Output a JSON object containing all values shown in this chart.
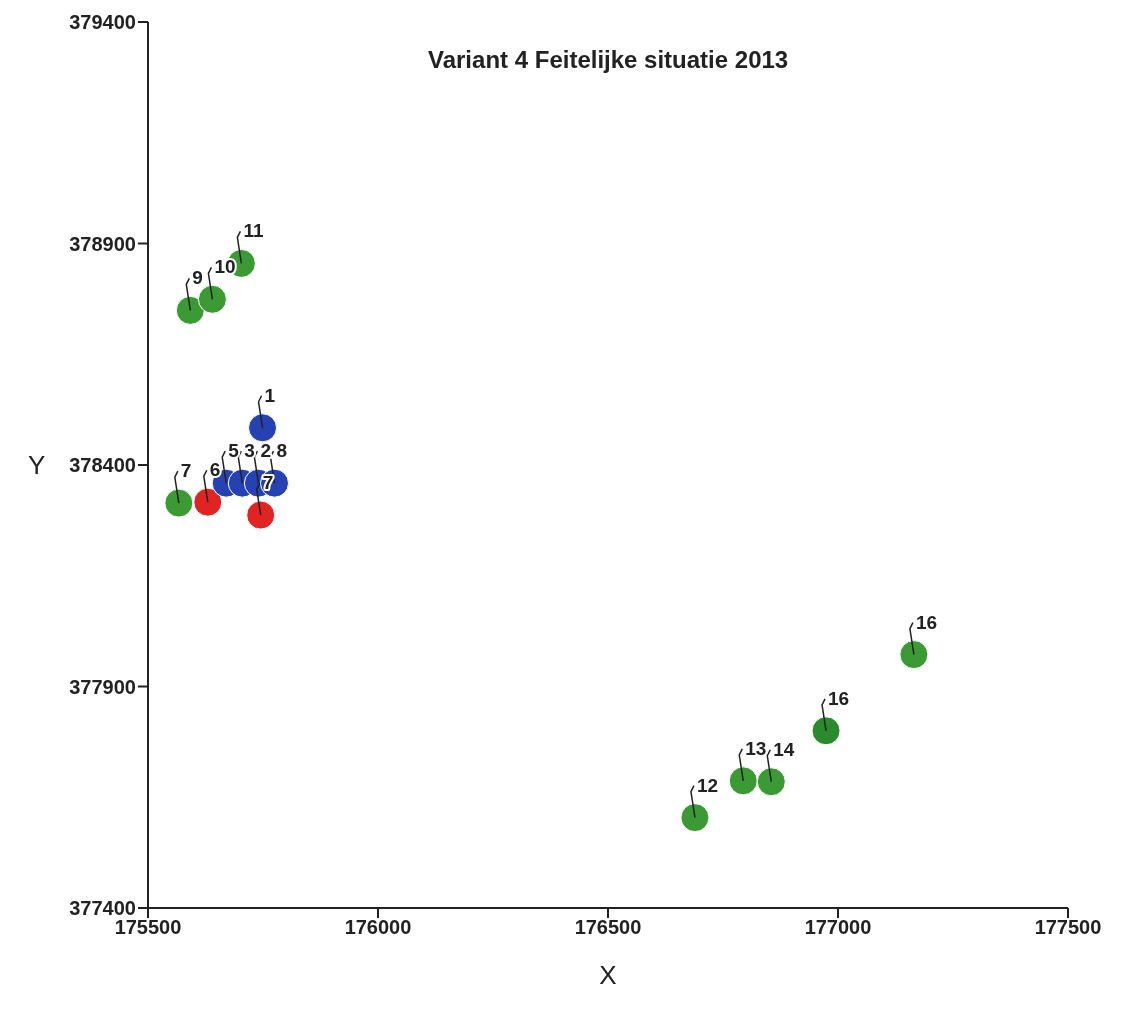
{
  "chart_data": {
    "type": "scatter",
    "title": "Variant 4 Feitelijke situatie 2013",
    "xlabel": "X",
    "ylabel": "Y",
    "series": [
      {
        "color": "#3c9a34",
        "colors": [
          "#3c9a34",
          "#3c9a34",
          "#3c9a34",
          "#3c9a34",
          "#3c9a34",
          "#3c9a34",
          "#3c9a34",
          "#2b8a2e",
          "#3c9a34"
        ],
        "x": [
          175567,
          175592,
          175640,
          175703,
          176689,
          176794,
          176855,
          176974,
          177165
        ],
        "values": [
          378314,
          378749,
          378774,
          378855,
          377604,
          377687,
          377685,
          377800,
          377972
        ]
      },
      {
        "color": "#e02424",
        "x": [
          175630,
          175745
        ],
        "values": [
          378316,
          378287
        ]
      },
      {
        "color": "#2541b2",
        "x": [
          175749,
          175670,
          175705,
          175740,
          175775
        ],
        "values": [
          378484,
          378359,
          378359,
          378359,
          378359
        ]
      }
    ],
    "annotations": [
      {
        "text": "7",
        "x": 175567,
        "y": 378314
      },
      {
        "text": "9",
        "x": 175592,
        "y": 378749
      },
      {
        "text": "10",
        "x": 175640,
        "y": 378774
      },
      {
        "text": "11",
        "x": 175703,
        "y": 378855
      },
      {
        "text": "12",
        "x": 176689,
        "y": 377604
      },
      {
        "text": "13",
        "x": 176794,
        "y": 377687
      },
      {
        "text": "14",
        "x": 176855,
        "y": 377685
      },
      {
        "text": "16",
        "x": 176974,
        "y": 377800
      },
      {
        "text": "16",
        "x": 177165,
        "y": 377972
      },
      {
        "text": "6",
        "x": 175630,
        "y": 378316
      },
      {
        "text": "7",
        "x": 175745,
        "y": 378287
      },
      {
        "text": "1",
        "x": 175749,
        "y": 378484
      },
      {
        "text": "5",
        "x": 175670,
        "y": 378359
      },
      {
        "text": "3",
        "x": 175705,
        "y": 378359
      },
      {
        "text": "2",
        "x": 175740,
        "y": 378359
      },
      {
        "text": "8",
        "x": 175775,
        "y": 378359
      }
    ],
    "xlim": [
      175500,
      177500
    ],
    "xticks": [
      175500,
      176000,
      176500,
      177000,
      177500
    ],
    "ylim": [
      377400,
      379400
    ],
    "yticks": [
      377400,
      377900,
      378400,
      378900,
      379400
    ],
    "grid": false,
    "marker": "circle",
    "legend": false
  }
}
